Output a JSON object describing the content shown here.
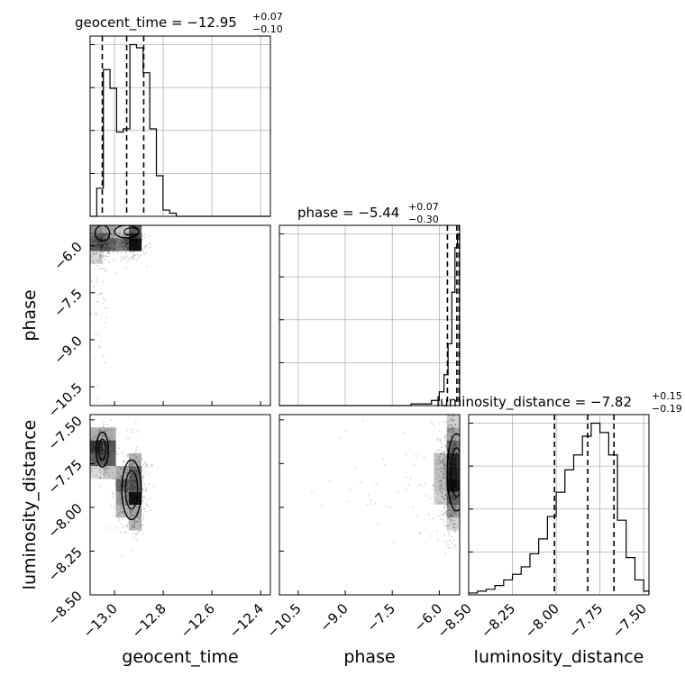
{
  "chart_data": {
    "type": "corner",
    "parameters": [
      {
        "name": "geocent_time",
        "title_prefix": "geocent_time = ",
        "median": "−12.95",
        "plus": "+0.07",
        "minus": "−0.10",
        "range": [
          -13.1,
          -12.36
        ],
        "ticks": [
          -13.0,
          -12.8,
          -12.6,
          -12.4
        ],
        "tick_labels": [
          "−13.0",
          "−12.8",
          "−12.6",
          "−12.4"
        ],
        "quantiles": [
          -13.05,
          -12.95,
          -12.88
        ],
        "hist": {
          "edges": [
            -13.1,
            -13.0728,
            -13.0456,
            -13.0184,
            -12.9912,
            -12.964,
            -12.9368,
            -12.9096,
            -12.8824,
            -12.8552,
            -12.828,
            -12.8008,
            -12.7736,
            -12.7464,
            -12.7192,
            -12.692,
            -12.6648,
            -12.6376,
            -12.6104,
            -12.5832,
            -12.556,
            -12.5288,
            -12.5016,
            -12.4744,
            -12.4472,
            -12.42,
            -12.36
          ],
          "counts": [
            0,
            9,
            47,
            41,
            27,
            28,
            55,
            54,
            46,
            28,
            13,
            2,
            1,
            0,
            0,
            0,
            0,
            0,
            0,
            0,
            0,
            0,
            0,
            0,
            0,
            0
          ]
        }
      },
      {
        "name": "phase",
        "title_prefix": "phase = ",
        "median": "−5.44",
        "plus": "+0.07",
        "minus": "−0.30",
        "range": [
          -11.1,
          -5.35
        ],
        "ticks": [
          -10.5,
          -9.0,
          -7.5,
          -6.0
        ],
        "tick_labels": [
          "−10.5",
          "−9.0",
          "−7.5",
          "−6.0"
        ],
        "y_ticks": [
          -10.5,
          -9.0,
          -7.5,
          -6.0
        ],
        "y_tick_labels": [
          "−10.5",
          "−9.0",
          "−7.5",
          "−6.0"
        ],
        "quantiles": [
          -5.74,
          -5.44,
          -5.37
        ],
        "hist": {
          "edges": [
            -11.1,
            -10.4,
            -9.7,
            -9.0,
            -8.3,
            -7.6,
            -6.9,
            -6.5,
            -6.25,
            -6.0,
            -5.85,
            -5.72,
            -5.6,
            -5.5,
            -5.42,
            -5.35
          ],
          "counts": [
            0,
            0,
            0,
            0,
            0,
            0,
            1,
            1,
            3,
            8,
            18,
            36,
            66,
            92,
            100
          ]
        }
      },
      {
        "name": "luminosity_distance",
        "title_prefix": "luminosity_distance = ",
        "median": "−7.82",
        "plus": "+0.15",
        "minus": "−0.19",
        "range": [
          -8.5,
          -7.47
        ],
        "ticks": [
          -8.5,
          -8.25,
          -8.0,
          -7.75,
          -7.5
        ],
        "tick_labels": [
          "−8.50",
          "−8.25",
          "−8.00",
          "−7.75",
          "−7.50"
        ],
        "y_ticks": [
          -7.5,
          -7.75,
          -8.0,
          -8.25,
          -8.5
        ],
        "y_tick_labels": [
          "−7.50",
          "−7.75",
          "−8.00",
          "−8.25",
          "−8.50"
        ],
        "quantiles": [
          -8.01,
          -7.82,
          -7.67
        ],
        "hist": {
          "edges": [
            -8.5,
            -8.45,
            -8.4,
            -8.35,
            -8.3,
            -8.25,
            -8.2,
            -8.15,
            -8.1,
            -8.05,
            -8.0,
            -7.95,
            -7.9,
            -7.85,
            -7.8,
            -7.75,
            -7.7,
            -7.65,
            -7.6,
            -7.55,
            -7.5,
            -7.47
          ],
          "counts": [
            1,
            2,
            3,
            5,
            8,
            11,
            15,
            22,
            30,
            42,
            55,
            67,
            75,
            85,
            92,
            87,
            75,
            40,
            20,
            8,
            2
          ]
        }
      }
    ],
    "grid": true
  }
}
